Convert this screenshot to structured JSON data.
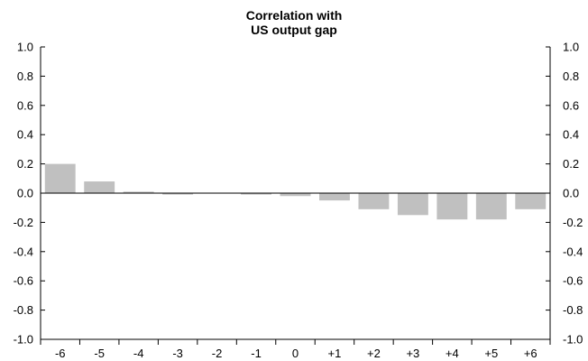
{
  "chart_data": {
    "type": "bar",
    "title_lines": [
      "Correlation with",
      "US output gap"
    ],
    "xlabel": "",
    "ylabel": "",
    "categories": [
      "-6",
      "-5",
      "-4",
      "-3",
      "-2",
      "-1",
      "0",
      "+1",
      "+2",
      "+3",
      "+4",
      "+5",
      "+6"
    ],
    "values": [
      0.2,
      0.08,
      0.01,
      -0.01,
      0.0,
      -0.01,
      -0.02,
      -0.05,
      -0.11,
      -0.15,
      -0.18,
      -0.18,
      -0.11
    ],
    "ylim": [
      -1.0,
      1.0
    ],
    "yticks": [
      "1.0",
      "0.8",
      "0.6",
      "0.4",
      "0.2",
      "0.0",
      "-0.2",
      "-0.4",
      "-0.6",
      "-0.8",
      "-1.0"
    ],
    "ytick_values": [
      1.0,
      0.8,
      0.6,
      0.4,
      0.2,
      0.0,
      -0.2,
      -0.4,
      -0.6,
      -0.8,
      -1.0
    ],
    "right_axis_ticks": true,
    "grid": false,
    "bar_color": "#c0c0c0",
    "zero_line_color": "#000000"
  }
}
